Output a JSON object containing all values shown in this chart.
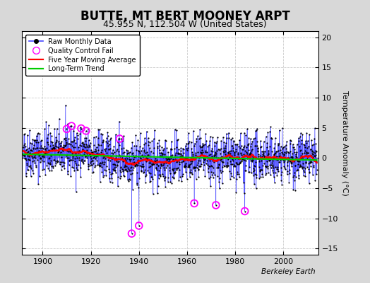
{
  "title": "BUTTE, MT BERT MOONEY ARPT",
  "subtitle": "45.955 N, 112.504 W (United States)",
  "ylabel": "Temperature Anomaly (°C)",
  "credit": "Berkeley Earth",
  "year_start": 1892,
  "year_end": 2013,
  "ylim": [
    -16,
    21
  ],
  "yticks": [
    -15,
    -10,
    -5,
    0,
    5,
    10,
    15,
    20
  ],
  "xticks": [
    1900,
    1920,
    1940,
    1960,
    1980,
    2000
  ],
  "fig_bg_color": "#d8d8d8",
  "plot_bg_color": "#ffffff",
  "grid_color": "#cccccc",
  "raw_line_color": "#4444ff",
  "raw_marker_color": "#000000",
  "moving_avg_color": "#ff0000",
  "trend_color": "#00cc00",
  "qc_fail_color": "#ff00ff",
  "title_fontsize": 12,
  "subtitle_fontsize": 9,
  "axis_fontsize": 8,
  "ylabel_fontsize": 8,
  "seed": 42,
  "qc_points": [
    [
      1910,
      4.8
    ],
    [
      1912,
      5.3
    ],
    [
      1916,
      4.9
    ],
    [
      1918,
      4.5
    ],
    [
      1932,
      3.2
    ],
    [
      1937,
      -12.5
    ],
    [
      1940,
      -11.2
    ],
    [
      1963,
      -7.5
    ],
    [
      1972,
      -7.8
    ],
    [
      1984,
      -8.8
    ]
  ]
}
